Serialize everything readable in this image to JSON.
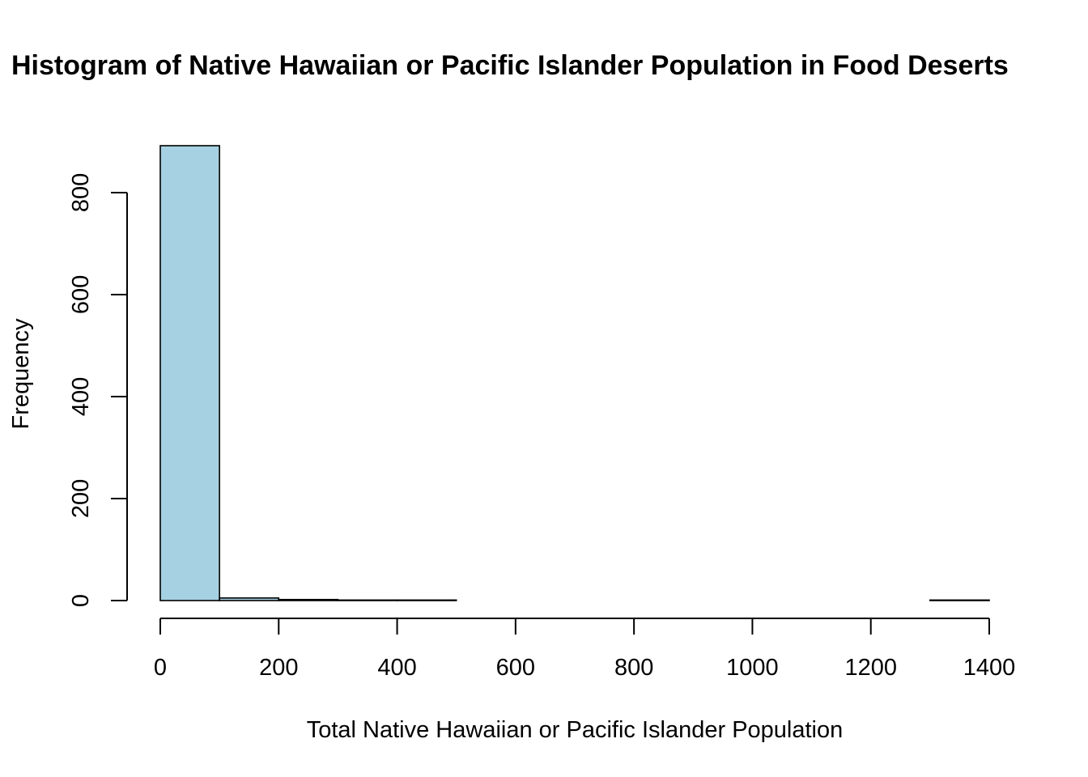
{
  "chart_data": {
    "type": "bar",
    "title": "Histogram of Native Hawaiian or Pacific Islander Population in Food Deserts",
    "xlabel": "Total Native Hawaiian or Pacific Islander Population",
    "ylabel": "Frequency",
    "bin_edges": [
      0,
      100,
      200,
      300,
      400,
      500,
      600,
      700,
      800,
      900,
      1000,
      1100,
      1200,
      1300,
      1400
    ],
    "values": [
      892,
      5,
      2,
      1,
      1,
      0,
      0,
      0,
      0,
      0,
      0,
      0,
      0,
      1
    ],
    "xlim": [
      0,
      1400
    ],
    "ylim": [
      0,
      892
    ],
    "x_ticks": [
      0,
      200,
      400,
      600,
      800,
      1000,
      1200,
      1400
    ],
    "y_ticks": [
      0,
      200,
      400,
      600,
      800
    ],
    "bar_color": "#a6d1e2",
    "grid": false,
    "legend": "none"
  }
}
